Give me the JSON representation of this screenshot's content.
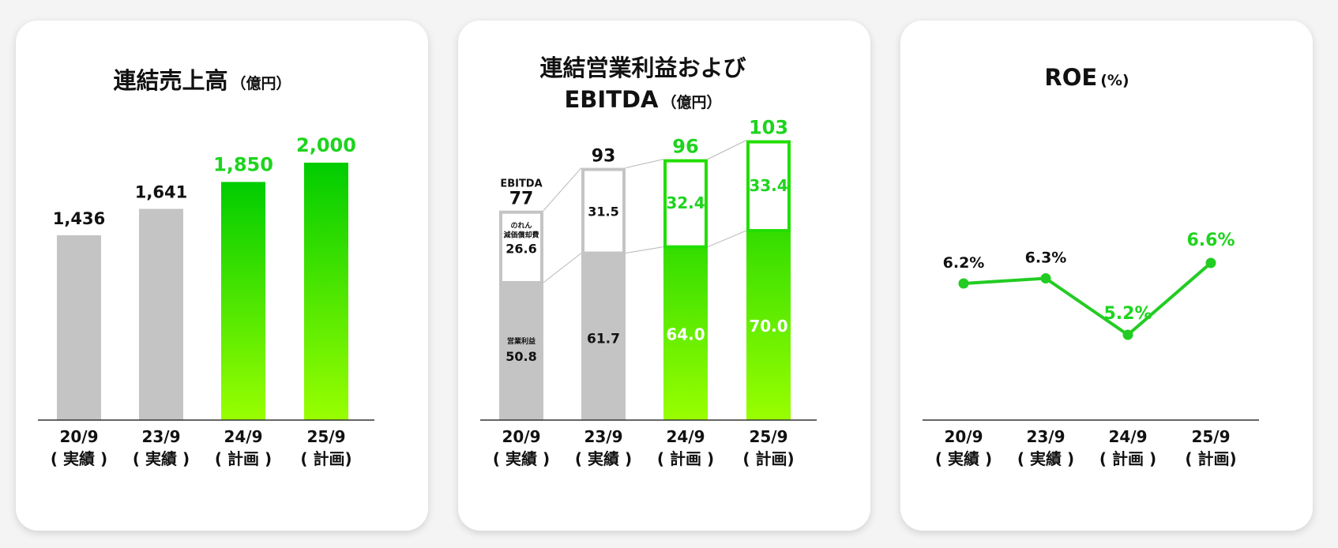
{
  "colors": {
    "grey": "#c4c4c4",
    "green_top": "#00cc00",
    "green_bottom": "#99ff00",
    "green_text": "#1ed41e",
    "dark": "#111111"
  },
  "chart_data": [
    {
      "type": "bar",
      "title": "連結売上高",
      "unit": "（億円）",
      "categories": [
        "20/9",
        "23/9",
        "24/9",
        "25/9"
      ],
      "category_sub": [
        "( 実績 )",
        "( 実績 )",
        "( 計画 )",
        "( 計画)"
      ],
      "values": [
        1436,
        1641,
        1850,
        2000
      ],
      "value_labels": [
        "1,436",
        "1,641",
        "1,850",
        "2,000"
      ],
      "highlight": [
        false,
        false,
        true,
        true
      ],
      "ylim": [
        0,
        2000
      ]
    },
    {
      "type": "bar",
      "stacked": true,
      "title_line1": "連結営業利益および",
      "title_line2": "EBITDA",
      "unit": "（億円）",
      "categories": [
        "20/9",
        "23/9",
        "24/9",
        "25/9"
      ],
      "category_sub": [
        "( 実績 )",
        "( 実績 )",
        "( 計画 )",
        "( 計画)"
      ],
      "series": [
        {
          "name": "営業利益",
          "values": [
            50.8,
            61.7,
            64.0,
            70.0
          ],
          "labels": [
            "50.8",
            "61.7",
            "64.0",
            "70.0"
          ]
        },
        {
          "name": "のれん減価償却費",
          "values": [
            26.6,
            31.5,
            32.4,
            33.4
          ],
          "labels": [
            "26.6",
            "31.5",
            "32.4",
            "33.4"
          ]
        }
      ],
      "totals": [
        "77",
        "93",
        "96",
        "103"
      ],
      "ebitda_label": "EBITDA",
      "series_label_1": "営業利益",
      "series_label_2_line1": "のれん",
      "series_label_2_line2": "減価償却費",
      "highlight": [
        false,
        false,
        true,
        true
      ],
      "ylim": [
        0,
        103
      ]
    },
    {
      "type": "line",
      "title": "ROE",
      "unit": "(%)",
      "categories": [
        "20/9",
        "23/9",
        "24/9",
        "25/9"
      ],
      "category_sub": [
        "( 実績 )",
        "( 実績 )",
        "( 計画 )",
        "( 計画)"
      ],
      "values": [
        6.2,
        6.3,
        5.2,
        6.6
      ],
      "value_labels": [
        "6.2%",
        "6.3%",
        "5.2%",
        "6.6%"
      ],
      "highlight": [
        false,
        false,
        true,
        true
      ]
    }
  ]
}
